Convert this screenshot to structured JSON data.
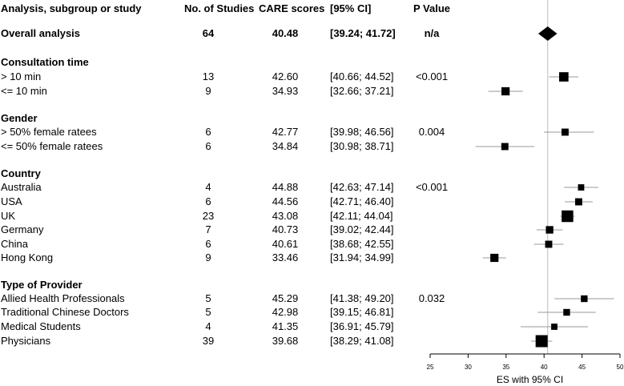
{
  "header": {
    "label": "Analysis, subgroup or study",
    "n": "No. of Studies",
    "care": "CARE scores",
    "ci": "[95% CI]",
    "p": "P Value"
  },
  "rows": [
    {
      "kind": "overall",
      "label": "Overall analysis",
      "n": "64",
      "care": "40.48",
      "ci": "[39.24; 41.72]",
      "p": "n/a"
    },
    {
      "kind": "group",
      "label": "Consultation time"
    },
    {
      "kind": "study",
      "label": "> 10 min",
      "n": "13",
      "care": "42.60",
      "ci": "[40.66; 44.52]",
      "p": "<0.001"
    },
    {
      "kind": "study",
      "label": "<= 10 min",
      "n": "9",
      "care": "34.93",
      "ci": "[32.66; 37.21]",
      "p": ""
    },
    {
      "kind": "group",
      "label": "Gender"
    },
    {
      "kind": "study",
      "label": "> 50% female ratees",
      "n": "6",
      "care": "42.77",
      "ci": "[39.98; 46.56]",
      "p": "0.004"
    },
    {
      "kind": "study",
      "label": "<= 50% female ratees",
      "n": "6",
      "care": "34.84",
      "ci": "[30.98; 38.71]",
      "p": ""
    },
    {
      "kind": "group",
      "label": "Country"
    },
    {
      "kind": "study",
      "label": "Australia",
      "n": "4",
      "care": "44.88",
      "ci": "[42.63; 47.14]",
      "p": "<0.001"
    },
    {
      "kind": "study",
      "label": "USA",
      "n": "6",
      "care": "44.56",
      "ci": "[42.71; 46.40]",
      "p": ""
    },
    {
      "kind": "study",
      "label": "UK",
      "n": "23",
      "care": "43.08",
      "ci": "[42.11; 44.04]",
      "p": ""
    },
    {
      "kind": "study",
      "label": "Germany",
      "n": "7",
      "care": "40.73",
      "ci": "[39.02; 42.44]",
      "p": ""
    },
    {
      "kind": "study",
      "label": "China",
      "n": "6",
      "care": "40.61",
      "ci": "[38.68; 42.55]",
      "p": ""
    },
    {
      "kind": "study",
      "label": "Hong Kong",
      "n": "9",
      "care": "33.46",
      "ci": "[31.94; 34.99]",
      "p": ""
    },
    {
      "kind": "group",
      "label": "Type of Provider"
    },
    {
      "kind": "study",
      "label": "Allied Health Professionals",
      "n": "5",
      "care": "45.29",
      "ci": "[41.38; 49.20]",
      "p": "0.032"
    },
    {
      "kind": "study",
      "label": "Traditional Chinese Doctors",
      "n": "5",
      "care": "42.98",
      "ci": "[39.15; 46.81]",
      "p": ""
    },
    {
      "kind": "study",
      "label": "Medical Students",
      "n": "4",
      "care": "41.35",
      "ci": "[36.91; 45.79]",
      "p": ""
    },
    {
      "kind": "study",
      "label": "Physicians",
      "n": "39",
      "care": "39.68",
      "ci": "[38.29; 41.08]",
      "p": ""
    }
  ],
  "chart_data": {
    "type": "forest",
    "xlabel": "ES with 95% CI",
    "xlim": [
      25,
      50
    ],
    "xticks": [
      25,
      30,
      35,
      40,
      45,
      50
    ],
    "reference_line": 40.48,
    "overall": {
      "label": "Overall analysis",
      "es": 40.48,
      "lo": 39.24,
      "hi": 41.72
    },
    "studies": [
      {
        "label": "> 10 min",
        "es": 42.6,
        "lo": 40.66,
        "hi": 44.52,
        "n": 13
      },
      {
        "label": "<= 10 min",
        "es": 34.93,
        "lo": 32.66,
        "hi": 37.21,
        "n": 9
      },
      {
        "label": "> 50% female ratees",
        "es": 42.77,
        "lo": 39.98,
        "hi": 46.56,
        "n": 6
      },
      {
        "label": "<= 50% female ratees",
        "es": 34.84,
        "lo": 30.98,
        "hi": 38.71,
        "n": 6
      },
      {
        "label": "Australia",
        "es": 44.88,
        "lo": 42.63,
        "hi": 47.14,
        "n": 4
      },
      {
        "label": "USA",
        "es": 44.56,
        "lo": 42.71,
        "hi": 46.4,
        "n": 6
      },
      {
        "label": "UK",
        "es": 43.08,
        "lo": 42.11,
        "hi": 44.04,
        "n": 23
      },
      {
        "label": "Germany",
        "es": 40.73,
        "lo": 39.02,
        "hi": 42.44,
        "n": 7
      },
      {
        "label": "China",
        "es": 40.61,
        "lo": 38.68,
        "hi": 42.55,
        "n": 6
      },
      {
        "label": "Hong Kong",
        "es": 33.46,
        "lo": 31.94,
        "hi": 34.99,
        "n": 9
      },
      {
        "label": "Allied Health Professionals",
        "es": 45.29,
        "lo": 41.38,
        "hi": 49.2,
        "n": 5
      },
      {
        "label": "Traditional Chinese Doctors",
        "es": 42.98,
        "lo": 39.15,
        "hi": 46.81,
        "n": 5
      },
      {
        "label": "Medical Students",
        "es": 41.35,
        "lo": 36.91,
        "hi": 45.79,
        "n": 4
      },
      {
        "label": "Physicians",
        "es": 39.68,
        "lo": 38.29,
        "hi": 41.08,
        "n": 39
      }
    ]
  }
}
